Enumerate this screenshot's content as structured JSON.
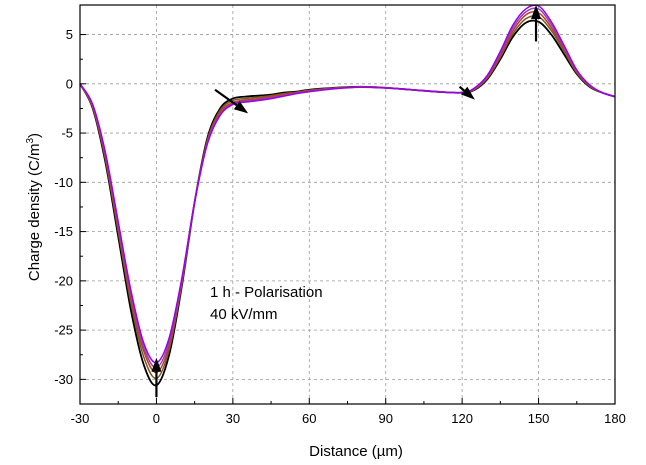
{
  "chart_data": {
    "type": "line",
    "xlabel": "Distance (µm)",
    "ylabel_main": "Charge density (C/m",
    "ylabel_sup": "3",
    "ylabel_tail": ")",
    "xlim": [
      -30,
      180
    ],
    "ylim": [
      -32.5,
      8
    ],
    "xticks": [
      -30,
      0,
      30,
      60,
      90,
      120,
      150,
      180
    ],
    "yticks": [
      -30,
      -25,
      -20,
      -15,
      -10,
      -5,
      0,
      5
    ],
    "grid": true,
    "grid_style": "dashed",
    "annotation_lines": [
      "1 h - Polarisation",
      "40 kV/mm"
    ],
    "series": [
      {
        "color": "#000000",
        "x": [
          -30,
          -25,
          -20,
          -15,
          -10,
          -5,
          0,
          5,
          10,
          15,
          20,
          25,
          30,
          35,
          40,
          45,
          50,
          55,
          60,
          70,
          80,
          90,
          100,
          110,
          120,
          125,
          130,
          135,
          140,
          145,
          150,
          155,
          160,
          165,
          170,
          175,
          180
        ],
        "values": [
          0,
          -2.5,
          -8,
          -15.5,
          -23,
          -28.5,
          -30.6,
          -27.5,
          -20.5,
          -12,
          -5.5,
          -2.5,
          -1.5,
          -1.3,
          -1.2,
          -1.1,
          -0.9,
          -0.8,
          -0.6,
          -0.4,
          -0.3,
          -0.4,
          -0.6,
          -0.8,
          -0.9,
          -0.6,
          0.5,
          2.5,
          4.8,
          6.2,
          6.3,
          5,
          3,
          1,
          -0.3,
          -0.9,
          -1.3
        ]
      },
      {
        "color": "#7a5a1e",
        "x": [
          -30,
          -25,
          -20,
          -15,
          -10,
          -5,
          0,
          5,
          10,
          15,
          20,
          25,
          30,
          35,
          40,
          45,
          50,
          55,
          60,
          70,
          80,
          90,
          100,
          110,
          120,
          125,
          130,
          135,
          140,
          145,
          150,
          155,
          160,
          165,
          170,
          175,
          180
        ],
        "values": [
          0,
          -2.4,
          -7.7,
          -15,
          -22.3,
          -27.7,
          -29.9,
          -27,
          -20.3,
          -12,
          -5.7,
          -2.7,
          -1.7,
          -1.5,
          -1.35,
          -1.2,
          -1,
          -0.85,
          -0.65,
          -0.42,
          -0.3,
          -0.4,
          -0.6,
          -0.8,
          -0.9,
          -0.55,
          0.6,
          2.7,
          5.1,
          6.6,
          6.8,
          5.4,
          3.3,
          1.1,
          -0.25,
          -0.9,
          -1.3
        ]
      },
      {
        "color": "#c0392b",
        "x": [
          -30,
          -25,
          -20,
          -15,
          -10,
          -5,
          0,
          5,
          10,
          15,
          20,
          25,
          30,
          35,
          40,
          45,
          50,
          55,
          60,
          70,
          80,
          90,
          100,
          110,
          120,
          125,
          130,
          135,
          140,
          145,
          150,
          155,
          160,
          165,
          170,
          175,
          180
        ],
        "values": [
          0,
          -2.3,
          -7.4,
          -14.6,
          -21.8,
          -27.1,
          -29.3,
          -26.6,
          -20.1,
          -12,
          -5.9,
          -2.9,
          -1.9,
          -1.65,
          -1.5,
          -1.3,
          -1.1,
          -0.9,
          -0.7,
          -0.45,
          -0.32,
          -0.4,
          -0.6,
          -0.8,
          -0.9,
          -0.5,
          0.7,
          2.9,
          5.4,
          7,
          7.2,
          5.7,
          3.5,
          1.2,
          -0.2,
          -0.9,
          -1.3
        ]
      },
      {
        "color": "#8e44ad",
        "x": [
          -30,
          -25,
          -20,
          -15,
          -10,
          -5,
          0,
          5,
          10,
          15,
          20,
          25,
          30,
          35,
          40,
          45,
          50,
          55,
          60,
          70,
          80,
          90,
          100,
          110,
          120,
          125,
          130,
          135,
          140,
          145,
          150,
          155,
          160,
          165,
          170,
          175,
          180
        ],
        "values": [
          0,
          -2.2,
          -7.2,
          -14.3,
          -21.4,
          -26.7,
          -28.8,
          -26.2,
          -19.9,
          -12,
          -6,
          -3.1,
          -2,
          -1.75,
          -1.6,
          -1.4,
          -1.2,
          -0.95,
          -0.75,
          -0.47,
          -0.33,
          -0.42,
          -0.6,
          -0.8,
          -0.9,
          -0.45,
          0.8,
          3.1,
          5.7,
          7.3,
          7.6,
          6,
          3.7,
          1.3,
          -0.15,
          -0.9,
          -1.3
        ]
      },
      {
        "color": "#9b00e6",
        "x": [
          -30,
          -25,
          -20,
          -15,
          -10,
          -5,
          0,
          5,
          10,
          15,
          20,
          25,
          30,
          35,
          40,
          45,
          50,
          55,
          60,
          70,
          80,
          90,
          100,
          110,
          120,
          125,
          130,
          135,
          140,
          145,
          150,
          155,
          160,
          165,
          170,
          175,
          180
        ],
        "values": [
          0,
          -2.1,
          -7,
          -14,
          -21,
          -26.3,
          -28.3,
          -25.8,
          -19.7,
          -12,
          -6.1,
          -3.2,
          -2.1,
          -1.85,
          -1.7,
          -1.5,
          -1.25,
          -1,
          -0.8,
          -0.5,
          -0.35,
          -0.43,
          -0.6,
          -0.8,
          -0.9,
          -0.4,
          0.9,
          3.3,
          6,
          7.6,
          7.9,
          6.3,
          3.9,
          1.4,
          -0.1,
          -0.9,
          -1.3
        ]
      }
    ],
    "arrows": [
      {
        "from": [
          0,
          -31.8
        ],
        "to": [
          0,
          -27.8
        ]
      },
      {
        "from": [
          23,
          -0.6
        ],
        "to": [
          36,
          -3.0
        ]
      },
      {
        "from": [
          119,
          -0.3
        ],
        "to": [
          125,
          -1.6
        ]
      },
      {
        "from": [
          149,
          4.3
        ],
        "to": [
          149,
          8.0
        ]
      }
    ]
  }
}
